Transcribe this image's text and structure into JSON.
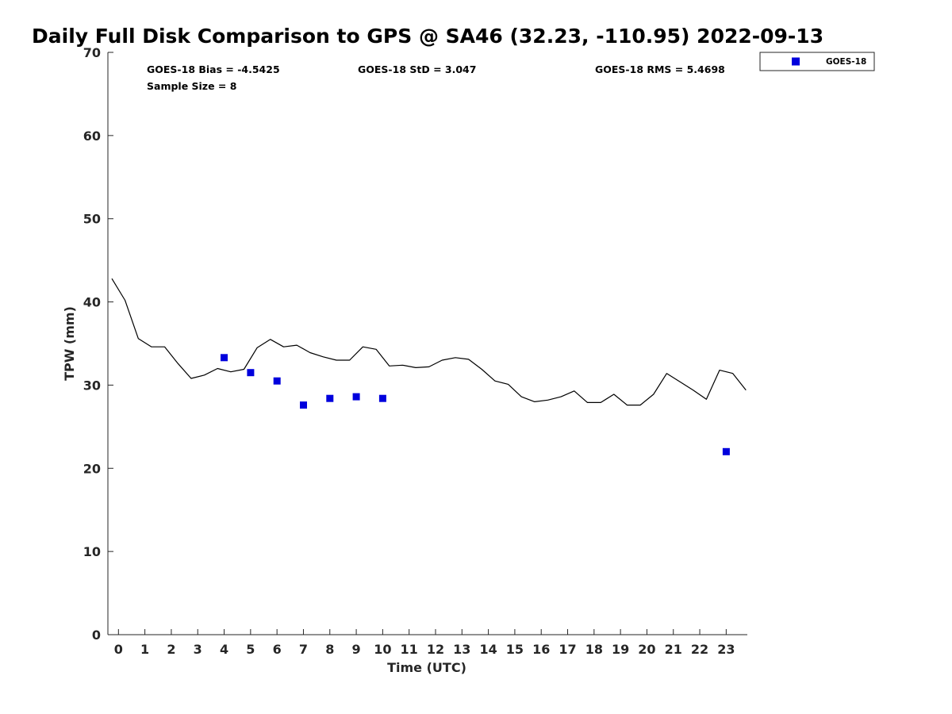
{
  "chart_data": {
    "type": "line",
    "title": "Daily Full Disk Comparison to GPS @ SA46 (32.23, -110.95) 2022-09-13",
    "xlabel": "Time (UTC)",
    "ylabel": "TPW (mm)",
    "xlim": [
      -0.4,
      23.8
    ],
    "ylim": [
      0,
      70
    ],
    "xticks": [
      0,
      1,
      2,
      3,
      4,
      5,
      6,
      7,
      8,
      9,
      10,
      11,
      12,
      13,
      14,
      15,
      16,
      17,
      18,
      19,
      20,
      21,
      22,
      23
    ],
    "yticks": [
      0,
      10,
      20,
      30,
      40,
      50,
      60,
      70
    ],
    "grid": false,
    "legend_position": "top-right, outside",
    "stats": {
      "bias": "GOES-18 Bias = -4.5425",
      "std": "GOES-18 StD = 3.047",
      "rms": "GOES-18 RMS = 5.4698",
      "sample_size": "Sample Size = 8"
    },
    "series": [
      {
        "style": "line",
        "color": "#000000",
        "x": [
          -0.25,
          0.25,
          0.75,
          1.25,
          1.75,
          2.25,
          2.75,
          3.25,
          3.75,
          4.25,
          4.75,
          5.25,
          5.75,
          6.25,
          6.75,
          7.25,
          7.75,
          8.25,
          8.75,
          9.25,
          9.75,
          10.25,
          10.75,
          11.25,
          11.75,
          12.25,
          12.75,
          13.25,
          13.75,
          14.25,
          14.75,
          15.25,
          15.75,
          16.25,
          16.75,
          17.25,
          17.75,
          18.25,
          18.75,
          19.25,
          19.75,
          20.25,
          20.75,
          21.25,
          21.75,
          22.25,
          22.75,
          23.25,
          23.75
        ],
        "y": [
          42.8,
          40.2,
          35.6,
          34.6,
          34.6,
          32.6,
          30.8,
          31.2,
          32.0,
          31.6,
          31.9,
          34.5,
          35.5,
          34.6,
          34.8,
          33.9,
          33.4,
          33.0,
          33.0,
          34.6,
          34.3,
          32.3,
          32.4,
          32.1,
          32.2,
          33.0,
          33.3,
          33.1,
          31.9,
          30.5,
          30.1,
          28.6,
          28.0,
          28.2,
          28.6,
          29.3,
          27.9,
          27.9,
          28.9,
          27.6,
          27.6,
          28.9,
          31.4,
          30.4,
          29.4,
          28.3,
          31.8,
          31.4,
          29.4
        ]
      },
      {
        "name": "GOES-18",
        "style": "square-marker",
        "color": "#0000dd",
        "x": [
          4,
          5,
          6,
          7,
          8,
          9,
          10,
          23
        ],
        "y": [
          33.3,
          31.5,
          30.5,
          27.6,
          28.4,
          28.6,
          28.4,
          22.0
        ]
      }
    ]
  }
}
